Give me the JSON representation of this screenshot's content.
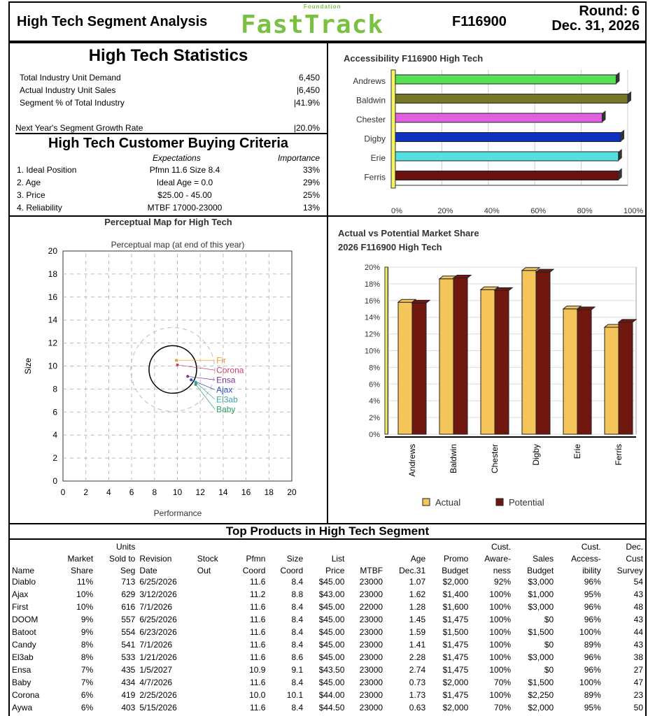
{
  "header": {
    "title": "High Tech Segment Analysis",
    "logo_small": "Foundation",
    "logo": "FastTrack",
    "company_code": "F116900",
    "round": "Round: 6",
    "date": "Dec. 31, 2026"
  },
  "stats": {
    "title": "High Tech Statistics",
    "rows": [
      {
        "label": "Total Industry Unit Demand",
        "value": "6,450"
      },
      {
        "label": "Actual Industry Unit Sales",
        "value": "|6,450"
      },
      {
        "label": "Segment % of Total Industry",
        "value": "|41.9%"
      }
    ],
    "growth": {
      "label": "Next Year's Segment Growth Rate",
      "value": "|20.0%"
    },
    "criteria_title": "High Tech Customer Buying Criteria",
    "col_expectations": "Expectations",
    "col_importance": "Importance",
    "criteria": [
      {
        "label": "1. Ideal Position",
        "exp": "Pfmn 11.6 Size 8.4",
        "imp": "33%"
      },
      {
        "label": "2. Age",
        "exp": "Ideal Age = 0.0",
        "imp": "29%"
      },
      {
        "label": "3. Price",
        "exp": "$25.00 - 45.00",
        "imp": "25%"
      },
      {
        "label": "4. Reliability",
        "exp": "MTBF 17000-23000",
        "imp": "13%"
      }
    ]
  },
  "chart_data": [
    {
      "type": "bar",
      "orientation": "horizontal",
      "title": "Accessibility F116900 High Tech",
      "categories": [
        "Andrews",
        "Baldwin",
        "Chester",
        "Digby",
        "Erie",
        "Ferris"
      ],
      "values": [
        95,
        100,
        89,
        97,
        96,
        96
      ],
      "colors": [
        "#55e055",
        "#77772a",
        "#e060e0",
        "#1030c0",
        "#55e0e0",
        "#6a1010"
      ],
      "xlim": [
        0,
        100
      ],
      "xticks": [
        "0%",
        "20%",
        "40%",
        "60%",
        "80%",
        "100%"
      ]
    },
    {
      "type": "scatter",
      "title": "Perceptual Map for High Tech",
      "subtitle": "Perceptual map (at end of this year)",
      "xlabel": "Performance",
      "ylabel": "Size",
      "xlim": [
        0,
        20
      ],
      "ylim": [
        0,
        20
      ],
      "ticks": [
        "0",
        "2",
        "4",
        "6",
        "8",
        "10",
        "12",
        "14",
        "16",
        "18",
        "20"
      ],
      "points": [
        {
          "name": "Fir",
          "x": 9.9,
          "y": 10.5,
          "color": "#f0a030"
        },
        {
          "name": "Corona",
          "x": 10.0,
          "y": 10.1,
          "color": "#d04060"
        },
        {
          "name": "Ensa",
          "x": 10.9,
          "y": 9.1,
          "color": "#8030a0"
        },
        {
          "name": "Ajax",
          "x": 11.2,
          "y": 8.8,
          "color": "#3050c0"
        },
        {
          "name": "El3ab",
          "x": 11.6,
          "y": 8.6,
          "color": "#40a0a0"
        },
        {
          "name": "Baby",
          "x": 11.6,
          "y": 8.4,
          "color": "#30a060"
        }
      ]
    },
    {
      "type": "bar",
      "title": "Actual vs Potential Market Share",
      "subtitle": "2026 F116900 High Tech",
      "categories": [
        "Andrews",
        "Baldwin",
        "Chester",
        "Digby",
        "Erie",
        "Ferris"
      ],
      "series": [
        {
          "name": "Actual",
          "values": [
            15.8,
            18.6,
            17.3,
            19.6,
            15.0,
            12.8
          ],
          "color": "#f5c55a"
        },
        {
          "name": "Potential",
          "values": [
            15.7,
            18.7,
            17.2,
            19.4,
            14.9,
            13.4
          ],
          "color": "#701810"
        }
      ],
      "ylim": [
        0,
        20
      ],
      "yticks": [
        "0%",
        "2%",
        "4%",
        "6%",
        "8%",
        "10%",
        "12%",
        "14%",
        "16%",
        "18%",
        "20%"
      ],
      "legend": "bottom"
    }
  ],
  "table": {
    "title": "Top Products in High Tech Segment",
    "headers": [
      [
        "",
        "",
        "Units",
        "",
        "",
        "",
        "",
        "",
        "",
        "",
        "",
        "Cust.",
        "",
        "Cust.",
        "Dec."
      ],
      [
        "",
        "Market",
        "Sold to",
        "Revision",
        "Stock",
        "Pfmn",
        "Size",
        "List",
        "",
        "Age",
        "Promo",
        "Aware-",
        "Sales",
        "Access-",
        "Cust"
      ],
      [
        "Name",
        "Share",
        "Seg",
        "Date",
        "Out",
        "Coord",
        "Coord",
        "Price",
        "MTBF",
        "Dec.31",
        "Budget",
        "ness",
        "Budget",
        "ibility",
        "Survey"
      ]
    ],
    "rows": [
      [
        "Diablo",
        "11%",
        "713",
        "6/25/2026",
        "",
        "11.6",
        "8.4",
        "$45.00",
        "23000",
        "1.07",
        "$2,000",
        "92%",
        "$3,000",
        "96%",
        "54"
      ],
      [
        "Ajax",
        "10%",
        "629",
        "3/12/2026",
        "",
        "11.2",
        "8.8",
        "$43.00",
        "23000",
        "1.62",
        "$1,400",
        "100%",
        "$1,000",
        "95%",
        "43"
      ],
      [
        "First",
        "10%",
        "616",
        "7/1/2026",
        "",
        "11.6",
        "8.4",
        "$45.00",
        "22000",
        "1.28",
        "$1,600",
        "100%",
        "$3,000",
        "96%",
        "48"
      ],
      [
        "DOOM",
        "9%",
        "557",
        "6/25/2026",
        "",
        "11.6",
        "8.4",
        "$45.00",
        "23000",
        "1.45",
        "$1,475",
        "100%",
        "$0",
        "96%",
        "43"
      ],
      [
        "Batoot",
        "9%",
        "554",
        "6/23/2026",
        "",
        "11.6",
        "8.4",
        "$45.00",
        "23000",
        "1.59",
        "$1,500",
        "100%",
        "$1,500",
        "100%",
        "44"
      ],
      [
        "Candy",
        "8%",
        "541",
        "7/1/2026",
        "",
        "11.6",
        "8.4",
        "$45.00",
        "23000",
        "1.41",
        "$1,475",
        "100%",
        "$0",
        "89%",
        "43"
      ],
      [
        "El3ab",
        "8%",
        "533",
        "1/21/2026",
        "",
        "11.6",
        "8.6",
        "$45.00",
        "23000",
        "2.28",
        "$1,475",
        "100%",
        "$3,000",
        "96%",
        "38"
      ],
      [
        "Ensa",
        "7%",
        "435",
        "1/5/2027",
        "",
        "10.9",
        "9.1",
        "$43.50",
        "23000",
        "2.74",
        "$1,475",
        "100%",
        "$0",
        "96%",
        "27"
      ],
      [
        "Baby",
        "7%",
        "434",
        "4/7/2026",
        "",
        "11.6",
        "8.4",
        "$45.00",
        "23000",
        "0.73",
        "$2,000",
        "70%",
        "$1,500",
        "100%",
        "47"
      ],
      [
        "Corona",
        "6%",
        "419",
        "2/25/2026",
        "",
        "10.0",
        "10.1",
        "$44.00",
        "23000",
        "1.73",
        "$1,475",
        "100%",
        "$2,250",
        "89%",
        "23"
      ],
      [
        "Aywa",
        "6%",
        "403",
        "5/15/2026",
        "",
        "11.6",
        "8.4",
        "$44.50",
        "23000",
        "0.63",
        "$2,000",
        "70%",
        "$2,000",
        "95%",
        "50"
      ]
    ]
  }
}
